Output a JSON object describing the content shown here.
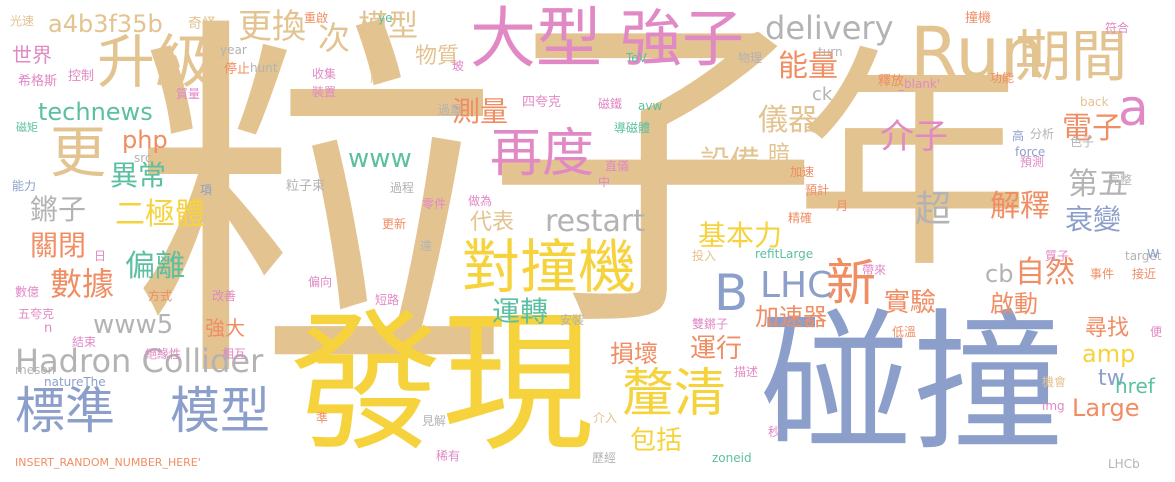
{
  "palette": {
    "tan": "#e3c390",
    "yellow": "#f6d33c",
    "blue": "#8c9fcb",
    "pink": "#e189c5",
    "orange": "#f08d63",
    "green": "#5bbfa1",
    "gray": "#b3b3b3"
  },
  "words": [
    "粒",
    "子",
    "年",
    "發現",
    "碰撞",
    "大型",
    "強子",
    "升級",
    "Run",
    "期間",
    "對撞機",
    "再度",
    "標準",
    "模型",
    "Hadron Collider",
    "釐清",
    "B",
    "LHC",
    "新",
    "a",
    "更",
    "更換",
    "次",
    "模型",
    "物質",
    "能量",
    "測量",
    "delivery",
    "a4b3f35b",
    "世界",
    "technews",
    "php",
    "www",
    "介子",
    "儀器",
    "電子",
    "設備",
    "暗",
    "異常",
    "鏘子",
    "二極體",
    "restart",
    "超",
    "解釋",
    "第五",
    "衰變",
    "關閉",
    "數據",
    "偏離",
    "基本力",
    "實驗",
    "自然",
    "www5",
    "運轉",
    "cb",
    "啟動",
    "加速器",
    "amp",
    "運行",
    "損壞",
    "強大",
    "尋找",
    "包括",
    "tw",
    "href",
    "Large",
    "ck",
    "代表",
    "光速",
    "奇怪",
    "重啟",
    "撞機",
    "符合",
    "控制",
    "停止",
    "收集",
    "物理",
    "釋放",
    "功能",
    "希格斯",
    "質量",
    "裝置",
    "四夸克",
    "磁鐵",
    "導磁體",
    "直儀",
    "過重",
    "back",
    "磁矩",
    "能力",
    "項",
    "粒子束",
    "過程",
    "做為",
    "加速",
    "預計",
    "預測",
    "完整",
    "force",
    "分析",
    "色子",
    "高",
    "更新",
    "零件",
    "精確",
    "月",
    "日",
    "達",
    "投入",
    "refitLarge",
    "帶來",
    "質子",
    "事件",
    "接近",
    "數億",
    "方式",
    "改善",
    "偏向",
    "短路",
    "安裝",
    "雙鏘子",
    "低溫",
    "便",
    "五夸克",
    "結束",
    "meson",
    "n",
    "絕緣性",
    "相互",
    "natureThe",
    "描述",
    "機會",
    "img",
    "介入",
    "見解",
    "秒",
    "準",
    "稀有",
    "歷經",
    "zoneid",
    "LHCb",
    "INSERT_RANDOM_NUMBER_HERE'",
    "src",
    "year",
    "hunt",
    "ye",
    "TeV",
    "avw",
    "_blank'",
    "turn",
    "中",
    "target",
    "W",
    "玻",
    "蔵"
  ]
}
